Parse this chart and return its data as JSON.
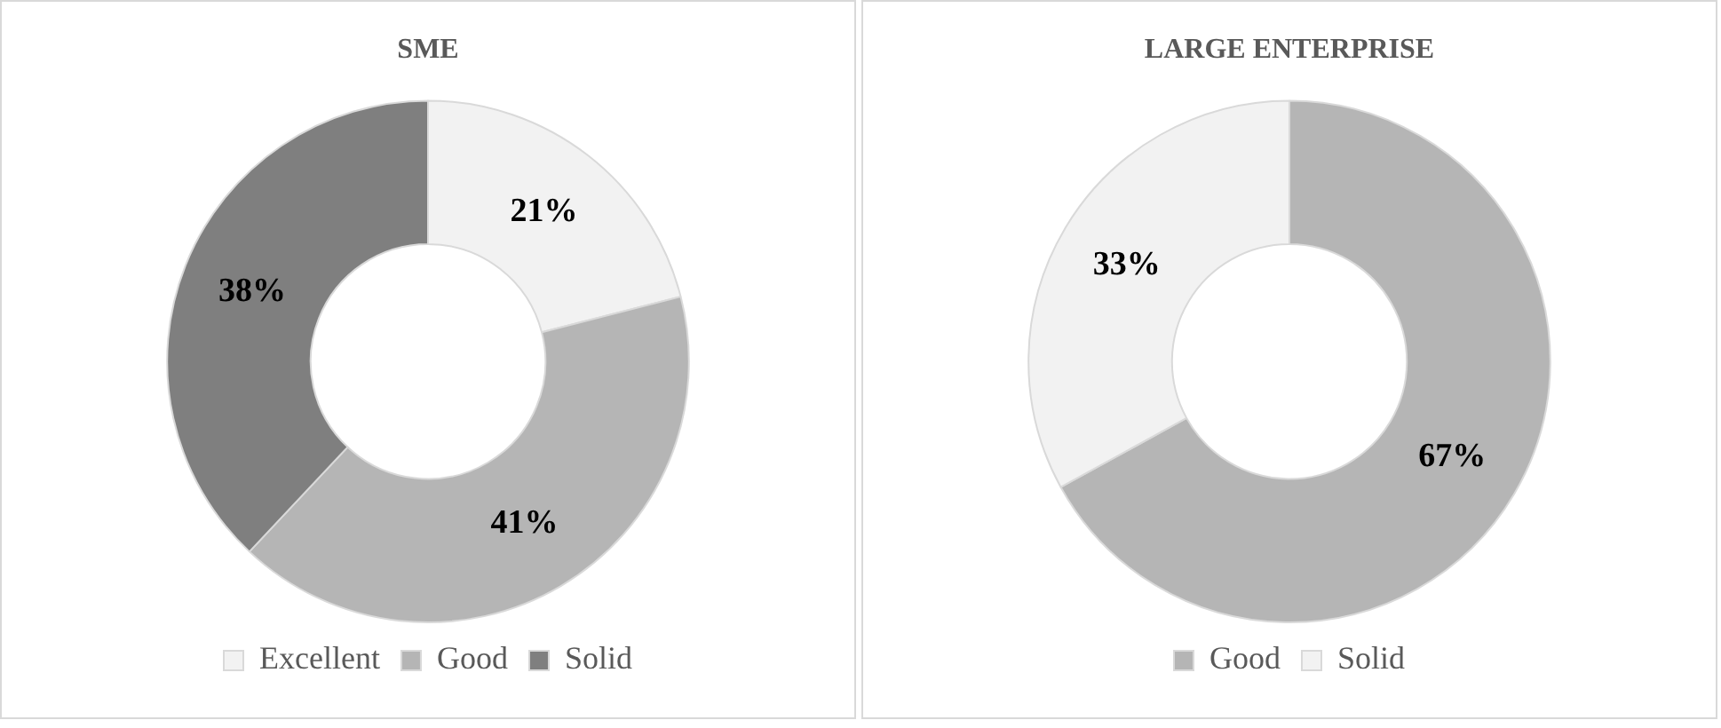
{
  "chart_data": [
    {
      "type": "donut",
      "title": "SME",
      "categories": [
        "Excellent",
        "Good",
        "Solid"
      ],
      "values": [
        21,
        41,
        38
      ],
      "value_labels": [
        "21%",
        "41%",
        "38%"
      ],
      "colors": [
        "#f2f2f2",
        "#b5b5b5",
        "#7f7f7f"
      ],
      "legend": "bottom"
    },
    {
      "type": "donut",
      "title": "LARGE ENTERPRISE",
      "categories": [
        "Good",
        "Solid"
      ],
      "values": [
        67,
        33
      ],
      "value_labels": [
        "67%",
        "33%"
      ],
      "colors": [
        "#b5b5b5",
        "#f2f2f2"
      ],
      "legend": "bottom"
    }
  ]
}
